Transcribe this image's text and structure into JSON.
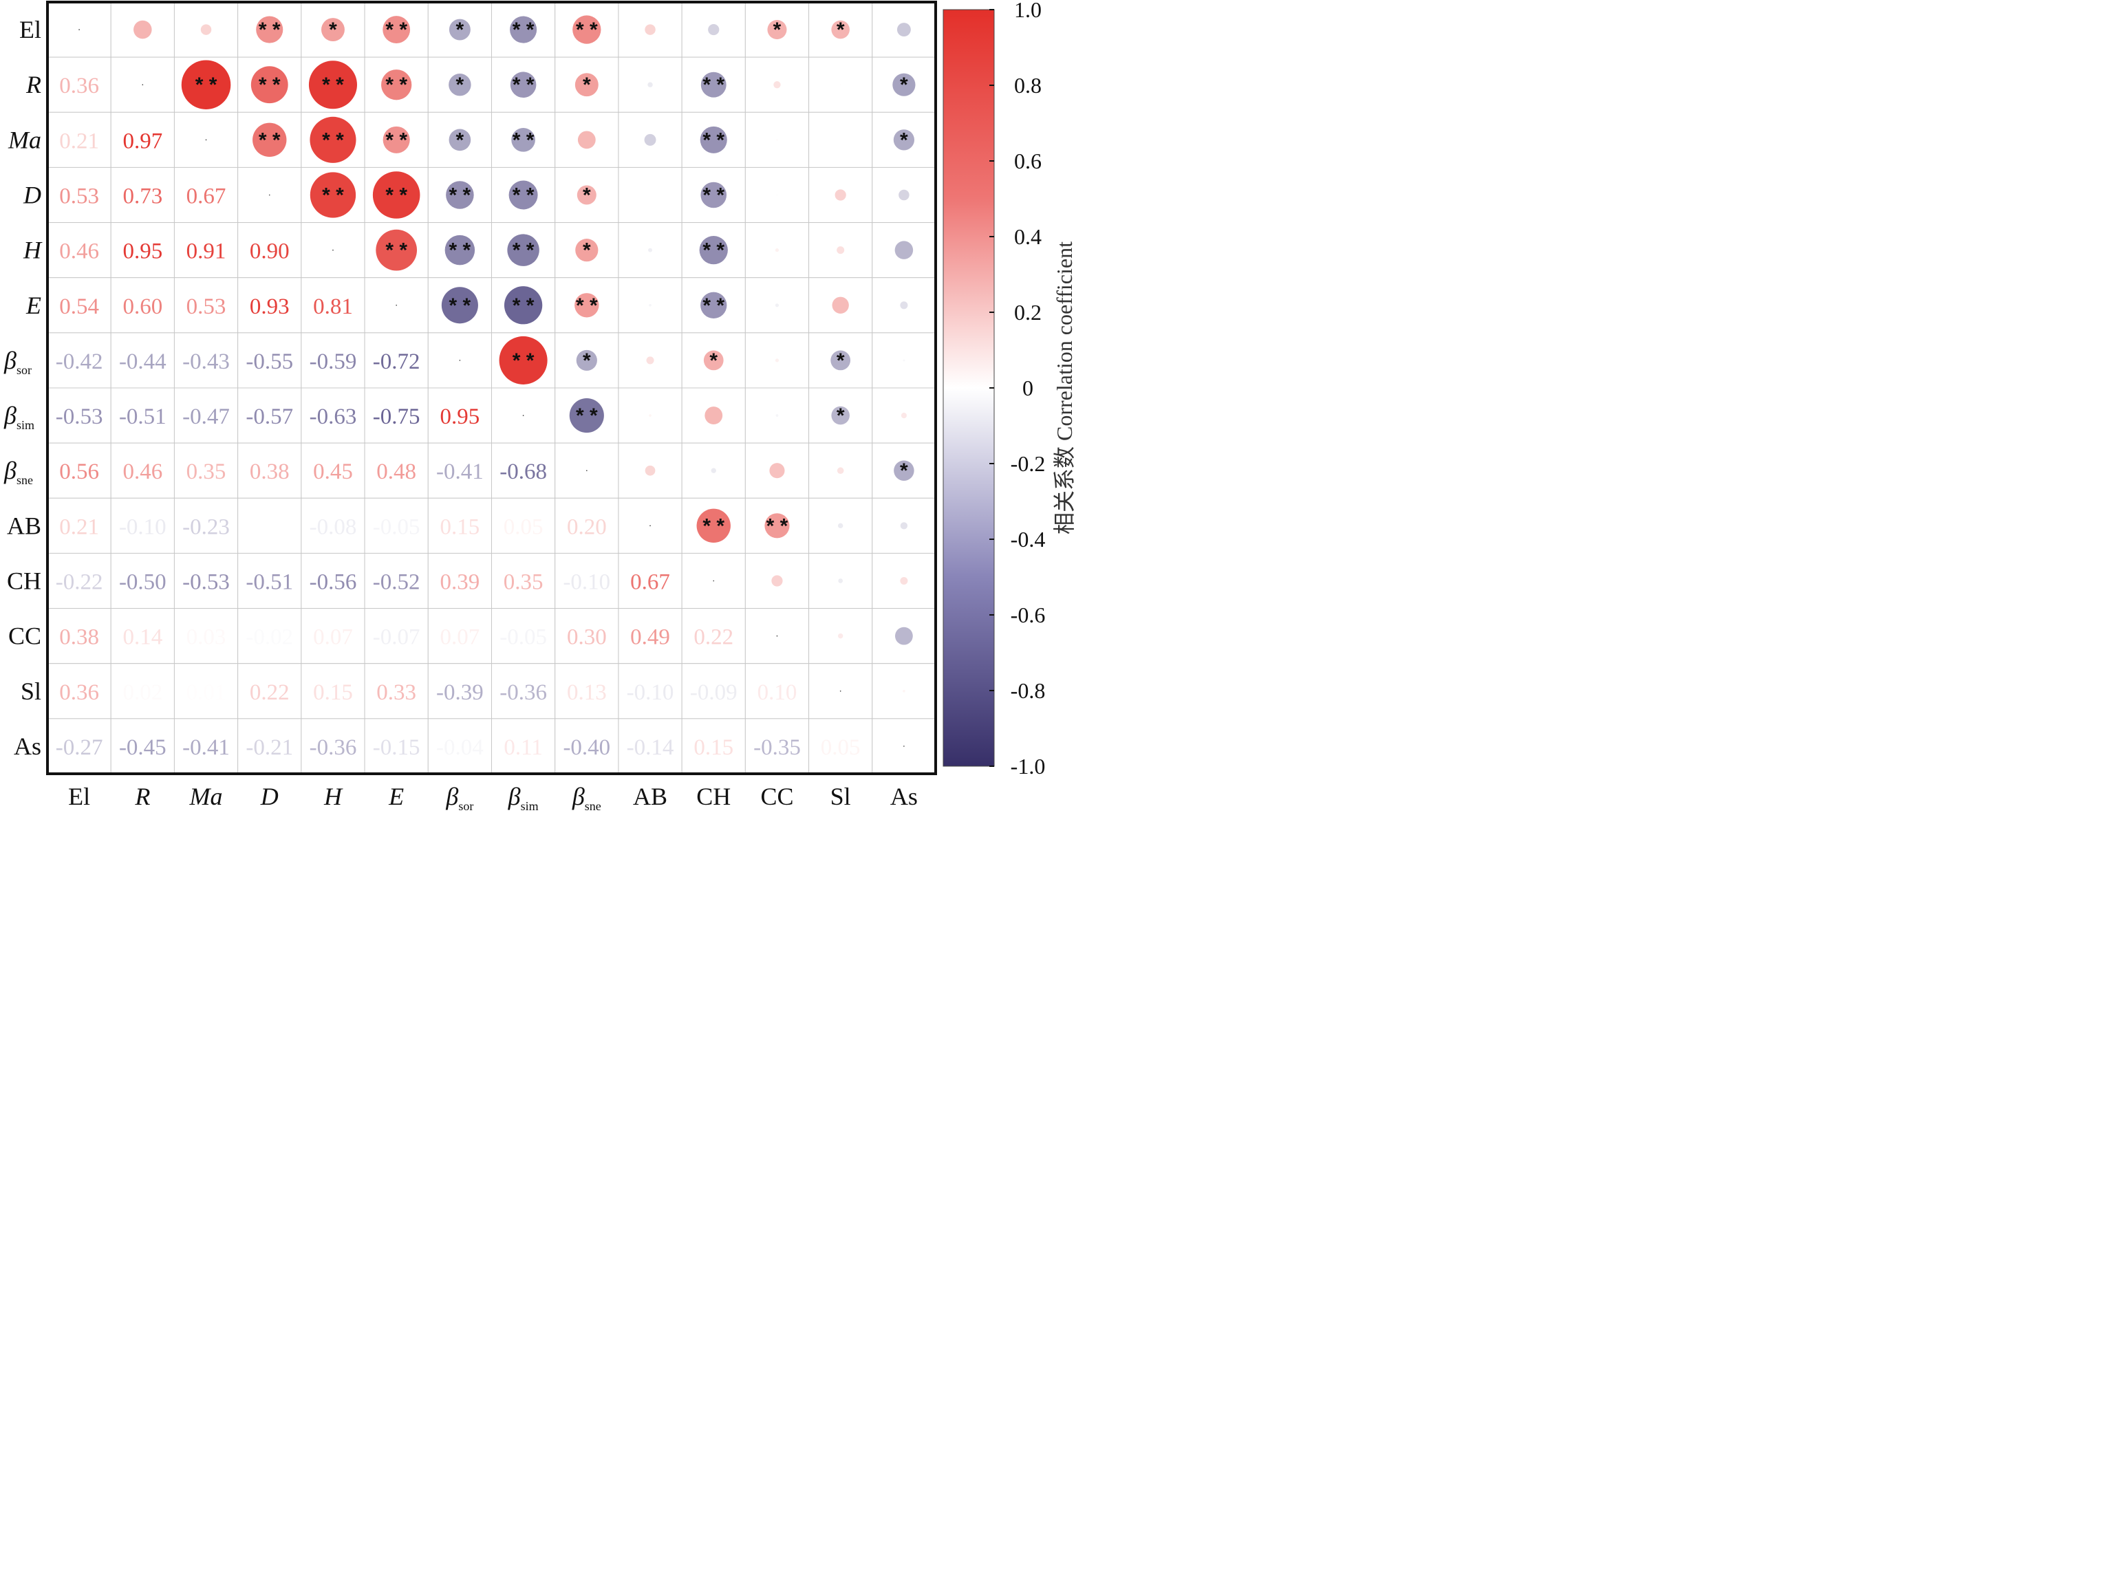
{
  "chart_data": {
    "type": "heatmap",
    "subtype": "correlation-matrix (lower: coefficients, upper: circles sized/colored by r with significance stars)",
    "variables": [
      {
        "label": "El",
        "italic": false,
        "sub": ""
      },
      {
        "label": "R",
        "italic": true,
        "sub": ""
      },
      {
        "label": "Ma",
        "italic": true,
        "sub": ""
      },
      {
        "label": "D",
        "italic": true,
        "sub": ""
      },
      {
        "label": "H",
        "italic": true,
        "sub": ""
      },
      {
        "label": "E",
        "italic": true,
        "sub": ""
      },
      {
        "label": "β",
        "italic": true,
        "sub": "sor"
      },
      {
        "label": "β",
        "italic": true,
        "sub": "sim"
      },
      {
        "label": "β",
        "italic": true,
        "sub": "sne"
      },
      {
        "label": "AB",
        "italic": false,
        "sub": ""
      },
      {
        "label": "CH",
        "italic": false,
        "sub": ""
      },
      {
        "label": "CC",
        "italic": false,
        "sub": ""
      },
      {
        "label": "Sl",
        "italic": false,
        "sub": ""
      },
      {
        "label": "As",
        "italic": false,
        "sub": ""
      }
    ],
    "lower_values": [
      [],
      [
        "0.36"
      ],
      [
        "0.21",
        "0.97"
      ],
      [
        "0.53",
        "0.73",
        "0.67"
      ],
      [
        "0.46",
        "0.95",
        "0.91",
        "0.90"
      ],
      [
        "0.54",
        "0.60",
        "0.53",
        "0.93",
        "0.81"
      ],
      [
        "-0.42",
        "-0.44",
        "-0.43",
        "-0.55",
        "-0.59",
        "-0.72"
      ],
      [
        "-0.53",
        "-0.51",
        "-0.47",
        "-0.57",
        "-0.63",
        "-0.75",
        "0.95"
      ],
      [
        "0.56",
        "0.46",
        "0.35",
        "0.38",
        "0.45",
        "0.48",
        "-0.41",
        "-0.68"
      ],
      [
        "0.21",
        "-0.10",
        "-0.23",
        "-0.00",
        "-0.08",
        "-0.05",
        "0.15",
        "0.05",
        "0.20"
      ],
      [
        "-0.22",
        "-0.50",
        "-0.53",
        "-0.51",
        "-0.56",
        "-0.52",
        "0.39",
        "0.35",
        "-0.10",
        "0.67"
      ],
      [
        "0.38",
        "0.14",
        "0.03",
        "-0.02",
        "0.07",
        "-0.07",
        "0.07",
        "-0.05",
        "0.30",
        "0.49",
        "0.22"
      ],
      [
        "0.36",
        "0.02",
        "0.01",
        "0.22",
        "0.15",
        "0.33",
        "-0.39",
        "-0.36",
        "0.13",
        "-0.10",
        "-0.09",
        "0.10"
      ],
      [
        "-0.27",
        "-0.45",
        "-0.41",
        "-0.21",
        "-0.36",
        "-0.15",
        "-0.04",
        "0.11",
        "-0.40",
        "-0.14",
        "0.15",
        "-0.35",
        "0.05"
      ]
    ],
    "significance_upper": [
      [
        "",
        "",
        "",
        "**",
        "*",
        "**",
        "*",
        "**",
        "**",
        "",
        "",
        "*",
        "*",
        ""
      ],
      [
        "",
        "",
        "**",
        "**",
        "**",
        "**",
        "*",
        "**",
        "*",
        "",
        "**",
        "",
        "",
        "*"
      ],
      [
        "",
        "",
        "",
        "**",
        "**",
        "**",
        "*",
        "**",
        "",
        "",
        "**",
        "",
        "",
        "*"
      ],
      [
        "",
        "",
        "",
        "",
        "**",
        "**",
        "**",
        "**",
        "*",
        "",
        "**",
        "",
        "",
        ""
      ],
      [
        "",
        "",
        "",
        "",
        "",
        "**",
        "**",
        "**",
        "*",
        "",
        "**",
        "",
        "",
        ""
      ],
      [
        "",
        "",
        "",
        "",
        "",
        "",
        "**",
        "**",
        "**",
        "",
        "**",
        "",
        "",
        ""
      ],
      [
        "",
        "",
        "",
        "",
        "",
        "",
        "",
        "**",
        "*",
        "",
        "*",
        "",
        "*",
        ""
      ],
      [
        "",
        "",
        "",
        "",
        "",
        "",
        "",
        "",
        "**",
        "",
        "",
        "",
        "*",
        ""
      ],
      [
        "",
        "",
        "",
        "",
        "",
        "",
        "",
        "",
        "",
        "",
        "",
        "",
        "",
        "*"
      ],
      [
        "",
        "",
        "",
        "",
        "",
        "",
        "",
        "",
        "",
        "",
        "**",
        "**",
        "",
        ""
      ],
      [
        "",
        "",
        "",
        "",
        "",
        "",
        "",
        "",
        "",
        "",
        "",
        "",
        "",
        ""
      ],
      [
        "",
        "",
        "",
        "",
        "",
        "",
        "",
        "",
        "",
        "",
        "",
        "",
        "",
        ""
      ],
      [
        "",
        "",
        "",
        "",
        "",
        "",
        "",
        "",
        "",
        "",
        "",
        "",
        "",
        ""
      ],
      [
        "",
        "",
        "",
        "",
        "",
        "",
        "",
        "",
        "",
        "",
        "",
        "",
        "",
        ""
      ]
    ],
    "colorbar": {
      "title": "相关系数 Correlation coefficient",
      "range": [
        -1.0,
        1.0
      ],
      "ticks": [
        "1.0",
        "0.8",
        "0.6",
        "0.4",
        "0.2",
        "0",
        "-0.2",
        "-0.4",
        "-0.6",
        "-0.8",
        "-1.0"
      ],
      "colors": {
        "positive": "#e3302a",
        "zero": "#ffffff",
        "negative": "#3a3272"
      },
      "placement": "right"
    },
    "grid": true
  }
}
